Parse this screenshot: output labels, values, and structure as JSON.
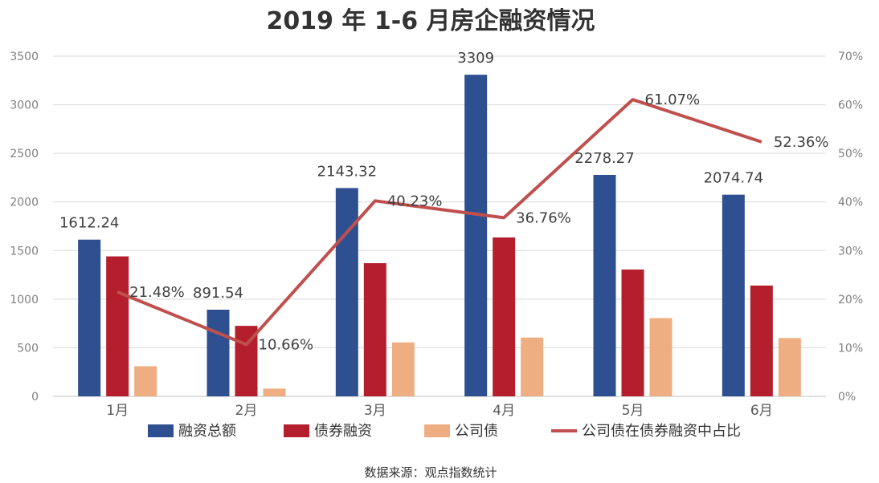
{
  "chart_data": {
    "type": "bar",
    "title": "2019 年 1-6 月房企融资情况",
    "categories": [
      "1月",
      "2月",
      "3月",
      "4月",
      "5月",
      "6月"
    ],
    "ylim": [
      0,
      3500
    ],
    "yticks": [
      "0",
      "500",
      "1000",
      "1500",
      "2000",
      "2500",
      "3000",
      "3500"
    ],
    "y2lim": [
      0,
      70
    ],
    "y2ticks": [
      "0%",
      "10%",
      "20%",
      "30%",
      "40%",
      "50%",
      "60%",
      "70%"
    ],
    "series": [
      {
        "name": "融资总额",
        "type": "bar",
        "axis": "left",
        "color": "#2e5090",
        "values": [
          1612.24,
          891.54,
          2143.32,
          3309,
          2278.27,
          2074.74
        ],
        "labels": [
          "1612.24",
          "891.54",
          "2143.32",
          "3309",
          "2278.27",
          "2074.74"
        ]
      },
      {
        "name": "债券融资",
        "type": "bar",
        "axis": "left",
        "color": "#b41e2d",
        "values": [
          1440,
          725,
          1370,
          1635,
          1305,
          1140
        ]
      },
      {
        "name": "公司债",
        "type": "bar",
        "axis": "left",
        "color": "#eeae82",
        "values": [
          310,
          80,
          555,
          605,
          805,
          600
        ]
      },
      {
        "name": "公司债在债券融资中占比",
        "type": "line",
        "axis": "right",
        "color": "#c0504d",
        "values": [
          21.48,
          10.66,
          40.23,
          36.76,
          61.07,
          52.36
        ],
        "labels": [
          "21.48%",
          "10.66%",
          "40.23%",
          "36.76%",
          "61.07%",
          "52.36%"
        ]
      }
    ],
    "grid": true,
    "legend": "bottom"
  },
  "source": "数据来源：观点指数统计"
}
